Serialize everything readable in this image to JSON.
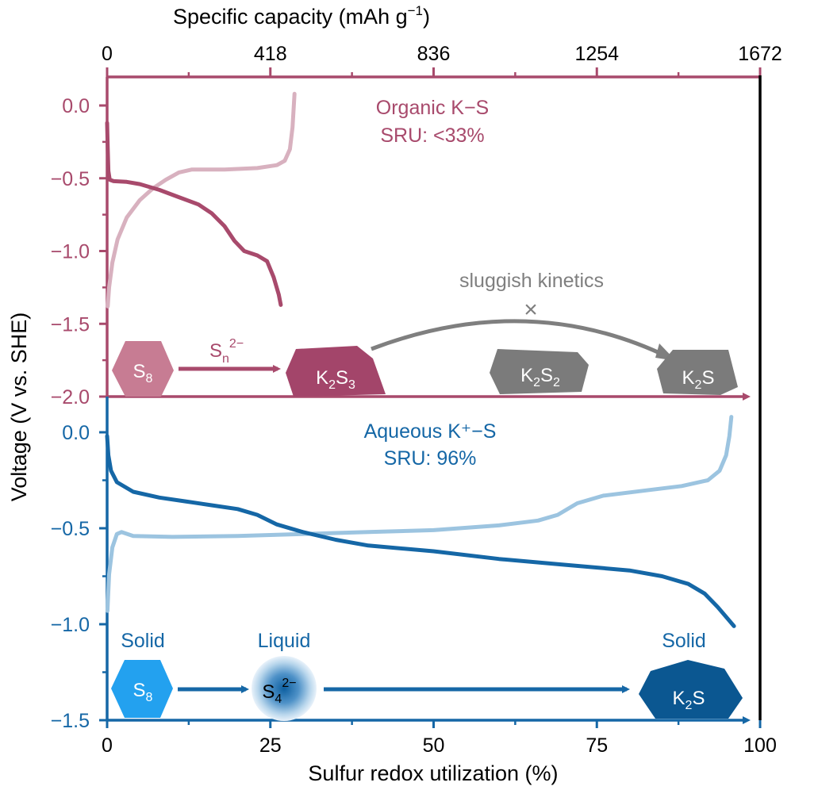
{
  "colors": {
    "organic": "#a84a6c",
    "organic_light": "#d8b1bf",
    "organic_chip": "#c77c93",
    "organic_k2s3": "#a3456a",
    "aqueous": "#1567a6",
    "aqueous_light": "#9cc4e0",
    "aqueous_s8": "#23a1ef",
    "aqueous_k2s": "#0b5791",
    "gray": "#7f7f7f",
    "gray_chip": "#7b7b7b",
    "frame": "#000000"
  },
  "chart_data": [
    {
      "panel": "organic",
      "type": "line",
      "title": "Organic K−S",
      "subtitle": "SRU: <33%",
      "ylim": [
        -2.0,
        0.1
      ],
      "yticks": [
        {
          "value": 0.0,
          "label": "0.0"
        },
        {
          "value": -0.5,
          "label": "−0.5"
        },
        {
          "value": -1.0,
          "label": "−1.0"
        },
        {
          "value": -1.5,
          "label": "−1.5"
        },
        {
          "value": -2.0,
          "label": "−2.0"
        }
      ],
      "series": [
        {
          "role": "discharge",
          "color_key": "organic",
          "points": [
            [
              0,
              -0.12
            ],
            [
              0.1,
              -0.3
            ],
            [
              0.2,
              -0.45
            ],
            [
              0.4,
              -0.51
            ],
            [
              1,
              -0.52
            ],
            [
              3,
              -0.525
            ],
            [
              5,
              -0.54
            ],
            [
              8,
              -0.58
            ],
            [
              11,
              -0.63
            ],
            [
              14,
              -0.68
            ],
            [
              16,
              -0.74
            ],
            [
              18,
              -0.83
            ],
            [
              19.5,
              -0.93
            ],
            [
              21,
              -1.0
            ],
            [
              23,
              -1.03
            ],
            [
              24.5,
              -1.07
            ],
            [
              25.5,
              -1.18
            ],
            [
              26.3,
              -1.3
            ],
            [
              26.6,
              -1.37
            ]
          ]
        },
        {
          "role": "charge",
          "color_key": "organic_light",
          "points": [
            [
              0.1,
              -1.38
            ],
            [
              0.3,
              -1.25
            ],
            [
              0.8,
              -1.08
            ],
            [
              1.6,
              -0.92
            ],
            [
              3,
              -0.77
            ],
            [
              5,
              -0.65
            ],
            [
              7,
              -0.57
            ],
            [
              9,
              -0.51
            ],
            [
              11,
              -0.46
            ],
            [
              13,
              -0.44
            ],
            [
              18,
              -0.44
            ],
            [
              23,
              -0.43
            ],
            [
              26,
              -0.41
            ],
            [
              27.2,
              -0.38
            ],
            [
              28,
              -0.3
            ],
            [
              28.4,
              -0.15
            ],
            [
              28.7,
              0.08
            ]
          ]
        }
      ]
    },
    {
      "panel": "aqueous",
      "type": "line",
      "title": "Aqueous K⁺−S",
      "subtitle": "SRU: 96%",
      "ylim": [
        -1.5,
        0.1
      ],
      "yticks": [
        {
          "value": 0.0,
          "label": "0.0"
        },
        {
          "value": -0.5,
          "label": "−0.5"
        },
        {
          "value": -1.0,
          "label": "−1.0"
        },
        {
          "value": -1.5,
          "label": "−1.5"
        }
      ],
      "series": [
        {
          "role": "discharge",
          "color_key": "aqueous",
          "points": [
            [
              0,
              -0.02
            ],
            [
              0.2,
              -0.12
            ],
            [
              0.6,
              -0.2
            ],
            [
              1.5,
              -0.26
            ],
            [
              4,
              -0.31
            ],
            [
              8,
              -0.34
            ],
            [
              12,
              -0.36
            ],
            [
              16,
              -0.38
            ],
            [
              20,
              -0.4
            ],
            [
              23,
              -0.43
            ],
            [
              26,
              -0.48
            ],
            [
              30,
              -0.52
            ],
            [
              35,
              -0.56
            ],
            [
              40,
              -0.59
            ],
            [
              50,
              -0.62
            ],
            [
              60,
              -0.66
            ],
            [
              70,
              -0.69
            ],
            [
              80,
              -0.72
            ],
            [
              85,
              -0.75
            ],
            [
              89,
              -0.79
            ],
            [
              91.5,
              -0.84
            ],
            [
              93.5,
              -0.91
            ],
            [
              95,
              -0.97
            ],
            [
              96,
              -1.01
            ]
          ]
        },
        {
          "role": "charge",
          "color_key": "aqueous_light",
          "points": [
            [
              0.05,
              -0.93
            ],
            [
              0.3,
              -0.74
            ],
            [
              0.8,
              -0.6
            ],
            [
              1.5,
              -0.53
            ],
            [
              2.2,
              -0.52
            ],
            [
              4,
              -0.54
            ],
            [
              10,
              -0.545
            ],
            [
              20,
              -0.54
            ],
            [
              30,
              -0.53
            ],
            [
              40,
              -0.52
            ],
            [
              50,
              -0.51
            ],
            [
              60,
              -0.485
            ],
            [
              66,
              -0.46
            ],
            [
              69,
              -0.43
            ],
            [
              72,
              -0.37
            ],
            [
              76,
              -0.33
            ],
            [
              82,
              -0.305
            ],
            [
              88,
              -0.28
            ],
            [
              92,
              -0.25
            ],
            [
              93.8,
              -0.2
            ],
            [
              94.8,
              -0.12
            ],
            [
              95.3,
              -0.02
            ],
            [
              95.6,
              0.08
            ]
          ]
        }
      ]
    }
  ],
  "axes": {
    "xlabel": "Sulfur redox utilization (%)",
    "xlim": [
      0,
      100
    ],
    "xticks": [
      {
        "value": 0,
        "label": "0"
      },
      {
        "value": 25,
        "label": "25"
      },
      {
        "value": 50,
        "label": "50"
      },
      {
        "value": 75,
        "label": "75"
      },
      {
        "value": 100,
        "label": "100"
      }
    ],
    "top_label": "Specific capacity (mAh g",
    "top_label_sup": "−1",
    "top_label_close": ")",
    "top_xlim": [
      0,
      1672
    ],
    "top_ticks": [
      {
        "value": 0,
        "label": "0"
      },
      {
        "value": 418,
        "label": "418"
      },
      {
        "value": 836,
        "label": "836"
      },
      {
        "value": 1254,
        "label": "1254"
      },
      {
        "value": 1672,
        "label": "1672"
      }
    ],
    "ylabel": "Voltage (V vs. SHE)"
  },
  "annotations": {
    "organic": {
      "s8_base": "S",
      "s8_sub": "8",
      "sn_base": "S",
      "sn_sub": "n",
      "sn_sup": "2−",
      "k2s3": [
        "K",
        "2",
        "S",
        "3"
      ],
      "k2s2": [
        "K",
        "2",
        "S",
        "2"
      ],
      "k2s": [
        "K",
        "2",
        "S"
      ],
      "sluggish": "sluggish kinetics",
      "cross": "×"
    },
    "aqueous": {
      "solid_left": "Solid",
      "liquid": "Liquid",
      "solid_right": "Solid",
      "s8_base": "S",
      "s8_sub": "8",
      "s4_base": "S",
      "s4_sub": "4",
      "s4_sup": "2−",
      "k2s": [
        "K",
        "2",
        "S"
      ]
    }
  }
}
